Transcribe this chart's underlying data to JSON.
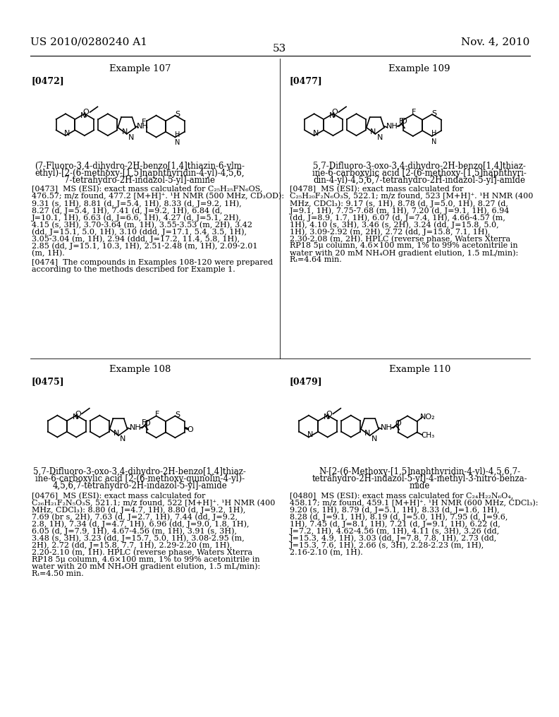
{
  "page_number": "53",
  "header_left": "US 2010/0280240 A1",
  "header_right": "Nov. 4, 2010",
  "background_color": "#ffffff",
  "text_color": "#000000",
  "examples": [
    {
      "id": "107",
      "label": "[0472]",
      "position": "top-left",
      "caption_lines": [
        "(7-Fluoro-3,4-dihydro-2H-benzo[1,4]thiazin-6-ylm-",
        "ethyl)-[2-(6-methoxy-[1,5]naphthyridin-4-yl)-4,5,6,",
        "7-tetrahydro-2H-indazol-5-yl]-amine"
      ],
      "para_label": "[0473]",
      "para_text": "MS (ESI): exact mass calculated for C₂₅H₂₅FN₆OS, 476.57; m/z found, 477.2 [M+H]⁺. ¹H NMR (500 MHz, CD₃OD): 9.31 (s, 1H), 8.81 (d, J=5.4, 1H), 8.33 (d, J=9.2, 1H), 8.27 (d, J=5.4, 1H), 7.41 (d, J=9.2, 1H), 6.84 (d, J=10.1, 1H), 6.63 (d, J=6.6, 1H), 4.27 (d, J=5.1, 2H), 4.15 (s, 3H), 3.70-3.64 (m, 1H), 3.55-3.53 (m, 2H), 3.42 (dd, J=15.1, 5.0, 1H), 3.10 (ddd, J=17.1, 5.4, 3.5, 1H), 3.05-3.04 (m, 1H), 2.94 (ddd, J=17.2, 11.4, 5.8, 1H), 2.85 (dd, J=15.1, 10.3, 1H), 2.51-2.48 (m, 1H), 2.09-2.01 (m, 1H).",
      "para2_label": "[0474]",
      "para2_text": "The compounds in Examples 108-120 were prepared according to the methods described for Example 1."
    },
    {
      "id": "108",
      "label": "[0475]",
      "position": "bottom-left",
      "caption_lines": [
        "5,7-Difluoro-3-oxo-3,4-dihydro-2H-benzo[1,4]thiaz-",
        "ine-6-carboxylic acid [2-(6-methoxy-quinolin-4-yl)-",
        "4,5,6,7-tetrahydro-2H-indazol-5-yl]-amide"
      ],
      "para_label": "[0476]",
      "para_text": "MS (ESI): exact mass calculated for C₂₆H₂₁F₂N₅O₃S, 521.1; m/z found, 522 [M+H]⁺. ¹H NMR (400 MHz, CDCl₃): 8.80 (d, J=4.7, 1H), 8.80 (d, J=9.2, 1H), 7.69 (br s, 2H), 7.63 (d, J=2.7, 1H), 7.44 (dd, J=9.2, 2.8, 1H), 7.34 (d, J=4.7, 1H), 6.96 (dd, J=9.0, 1.8, 1H), 6.05 (d, J=7.9, 1H), 4.67-4.56 (m, 1H), 3.91 (s, 3H), 3.48 (s, 3H), 3.23 (dd, J=15.7, 5.0, 1H), 3.08-2.95 (m, 2H), 2.72 (dd, J=15.8, 7.7, 1H), 2.29-2.20 (m, 1H), 2.20-2.10 (m, 1H). HPLC (reverse phase, Waters Xterra RP18 5μ column, 4.6×100 mm, 1% to 99% acetonitrile in water with 20 mM NH₄OH gradient elution, 1.5 mL/min): Rₜ=4.50 min."
    },
    {
      "id": "109",
      "label": "[0477]",
      "position": "top-right",
      "caption_lines": [
        "5,7-Difluoro-3-oxo-3,4-dihydro-2H-benzo[1,4]thiaz-",
        "ine-6-carboxylic acid [2-(6-methoxy-[1,5]naphthyri-",
        "din-4-yl)-4,5,6,7-tetrahydro-2H-indazol-5-yl]-amide"
      ],
      "para_label": "[0478]",
      "para_text": "MS (ESI): exact mass calculated for C₂₅H₂₀F₂N₆O₃S, 522.1; m/z found, 523 [M+H]⁺. ¹H NMR (400 MHz, CDCl₃): 9.17 (s, 1H), 8.78 (d, J=5.0, 1H), 8.27 (d, J=9.1, 1H), 7.75-7.68 (m, 1H), 7.20 (d, J=9.1, 1H), 6.94 (dd, J=8.9, 1.7, 1H), 6.07 (d, J=7.4, 1H), 4.66-4.57 (m, 1H), 4.10 (s, 3H), 3.46 (s, 2H), 3.24 (dd, J=15.8, 5.0, 1H), 3.09-2.92 (m, 2H), 2.72 (dd, J=15.8, 7.1, 1H), 2.30-2.08 (m, 2H). HPLC (reverse phase, Waters Xterra RP18 5μ column, 4.6×100 mm, 1% to 99% acetonitrile in water with 20 mM NH₄OH gradient elution, 1.5 mL/min): Rₜ=4.64 min."
    },
    {
      "id": "110",
      "label": "[0479]",
      "position": "bottom-right",
      "caption_lines": [
        "N-[2-(6-Methoxy-[1,5]naphthyridin-4-yl)-4,5,6,7-",
        "tetrahydro-2H-indazol-5-yl]-4-methyl-3-nitro-benza-",
        "mide"
      ],
      "para_label": "[0480]",
      "para_text": "MS (ESI): exact mass calculated for C₂₄H₂₂N₆O₄, 458.17; m/z found, 459.1 [M+H]⁺. ¹H NMR (600 MHz, CDCl₃): 9.20 (s, 1H), 8.79 (d, J=5.1, 1H), 8.33 (d, J=1.6, 1H), 8.28 (d, J=9.1, 1H), 8.19 (d, J=5.0, 1H), 7.95 (d, J=9.6, 1H), 7.45 (d, J=8.1, 1H), 7.21 (d, J=9.1, 1H), 6.22 (d, J=7.2, 1H), 4.62-4.56 (m, 1H), 4.11 (s, 3H), 3.26 (dd, J=15.3, 4.9, 1H), 3.03 (dd, J=7.8, 7.8, 1H), 2.73 (dd, J=15.3, 7.6, 1H), 2.66 (s, 3H), 2.28-2.23 (m, 1H), 2.16-2.10 (m, 1H)."
    }
  ]
}
